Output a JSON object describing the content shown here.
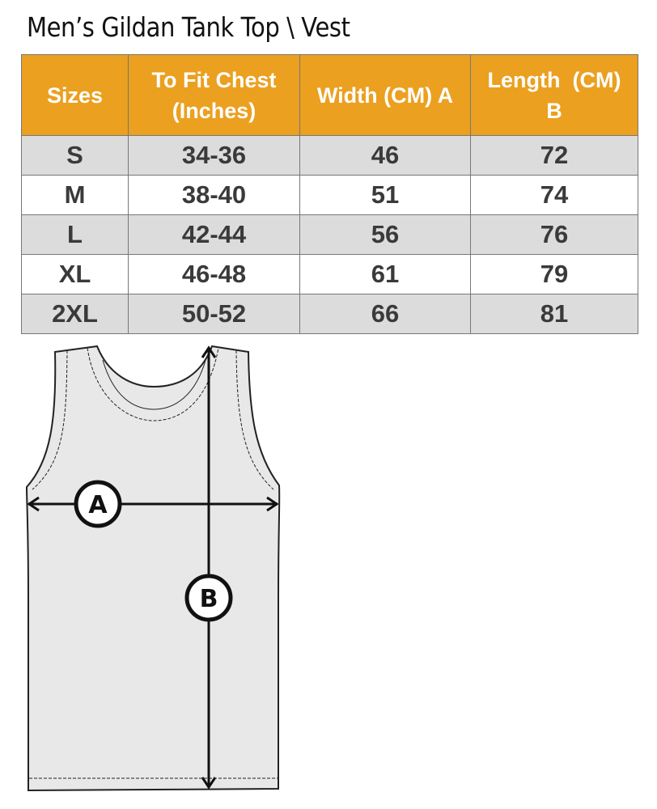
{
  "title": "Men’s Gildan Tank Top \\ Vest",
  "colors": {
    "header": "#eba020",
    "row_shaded": "#dcdcdc"
  },
  "table": {
    "headers": [
      [
        "Sizes"
      ],
      [
        "To Fit Chest",
        "(Inches)"
      ],
      [
        "Width (CM) A"
      ],
      [
        "Length  (CM)",
        "B"
      ]
    ],
    "rows": [
      [
        "S",
        "34-36",
        "46",
        "72"
      ],
      [
        "M",
        "38-40",
        "51",
        "74"
      ],
      [
        "L",
        "42-44",
        "56",
        "76"
      ],
      [
        "XL",
        "46-48",
        "61",
        "79"
      ],
      [
        "2XL",
        "50-52",
        "66",
        "81"
      ]
    ]
  },
  "diagram": {
    "label_a": "A",
    "label_b": "B"
  }
}
